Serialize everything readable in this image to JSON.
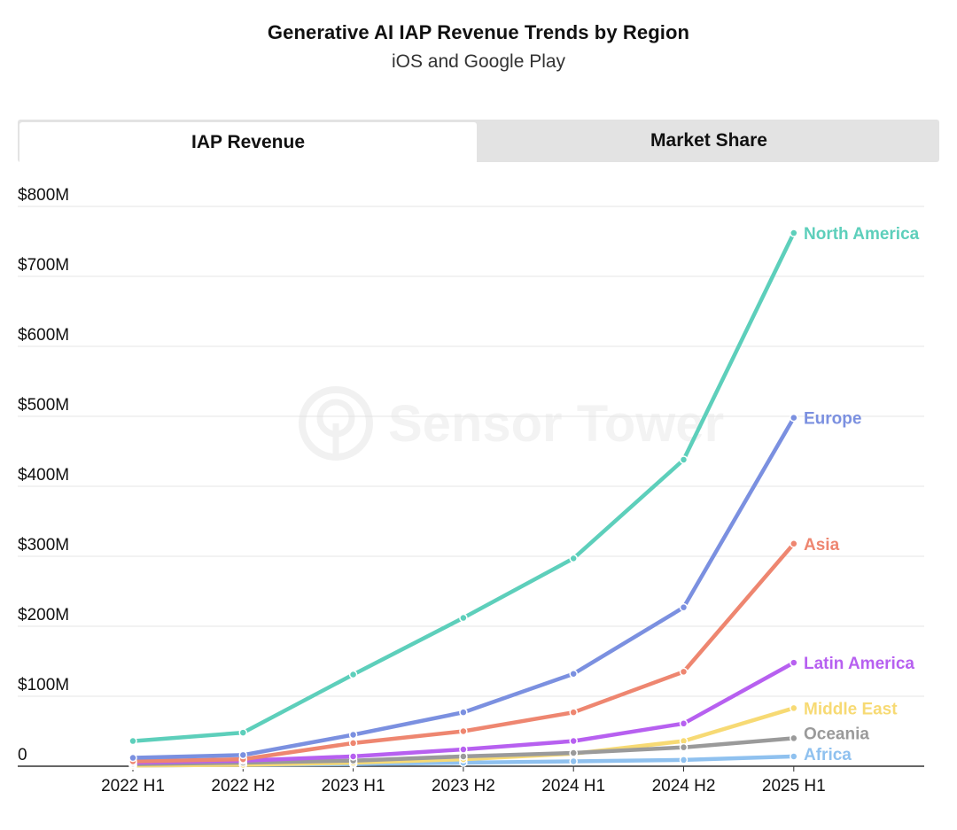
{
  "header": {
    "title": "Generative AI IAP Revenue Trends by Region",
    "subtitle": "iOS and Google Play"
  },
  "tabs": [
    {
      "label": "IAP Revenue",
      "active": true
    },
    {
      "label": "Market Share",
      "active": false
    }
  ],
  "watermark": "Sensor Tower",
  "chart_data": {
    "type": "line",
    "title": "Generative AI IAP Revenue Trends by Region",
    "subtitle": "iOS and Google Play",
    "xlabel": "",
    "ylabel": "",
    "categories": [
      "2022 H1",
      "2022 H2",
      "2023 H1",
      "2023 H2",
      "2024 H1",
      "2024 H2",
      "2025 H1"
    ],
    "ylim": [
      0,
      800
    ],
    "yunit": "M USD",
    "yticks": [
      {
        "value": 0,
        "label": "0"
      },
      {
        "value": 100,
        "label": "$100M"
      },
      {
        "value": 200,
        "label": "$200M"
      },
      {
        "value": 300,
        "label": "$300M"
      },
      {
        "value": 400,
        "label": "$400M"
      },
      {
        "value": 500,
        "label": "$500M"
      },
      {
        "value": 600,
        "label": "$600M"
      },
      {
        "value": 700,
        "label": "$700M"
      },
      {
        "value": 800,
        "label": "$800M"
      }
    ],
    "grid": true,
    "series": [
      {
        "name": "Africa",
        "color": "#8fc1ef",
        "values": [
          1,
          2,
          3,
          5,
          7,
          9,
          14
        ]
      },
      {
        "name": "Middle East",
        "color": "#f7da74",
        "values": [
          1,
          2,
          5,
          10,
          18,
          36,
          83
        ]
      },
      {
        "name": "Oceania",
        "color": "#9a9a9a",
        "values": [
          3,
          5,
          8,
          14,
          19,
          27,
          40
        ]
      },
      {
        "name": "Latin America",
        "color": "#b760f0",
        "values": [
          5,
          8,
          14,
          24,
          36,
          61,
          148
        ]
      },
      {
        "name": "Asia",
        "color": "#ee8670",
        "values": [
          7,
          10,
          33,
          50,
          77,
          135,
          318
        ]
      },
      {
        "name": "Europe",
        "color": "#7b90e0",
        "values": [
          12,
          16,
          45,
          77,
          132,
          227,
          498
        ]
      },
      {
        "name": "North America",
        "color": "#5dcfbb",
        "values": [
          36,
          48,
          131,
          212,
          297,
          438,
          762
        ]
      }
    ]
  }
}
